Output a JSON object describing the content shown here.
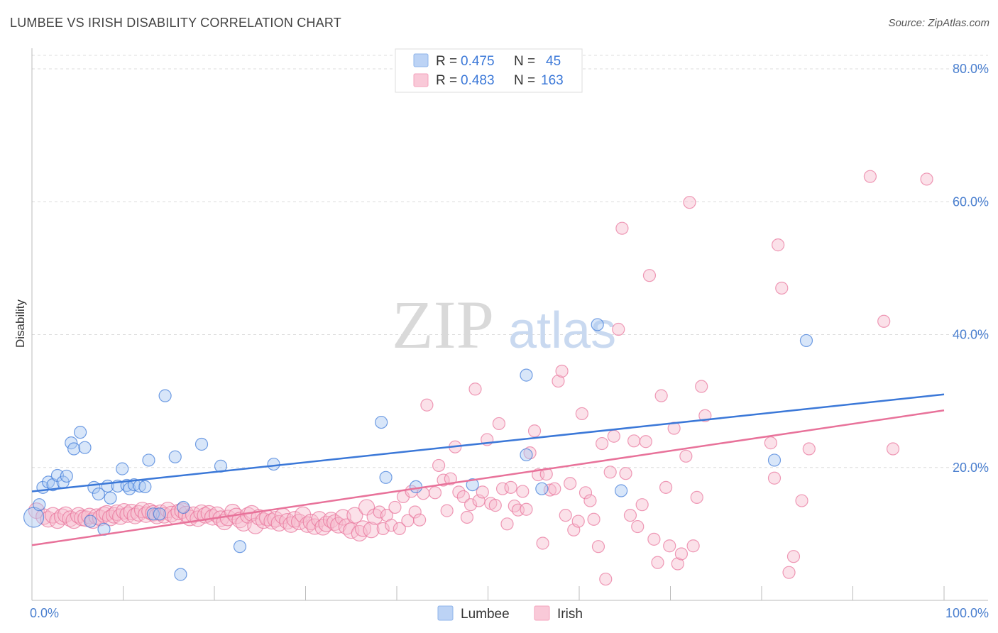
{
  "title": "LUMBEE VS IRISH DISABILITY CORRELATION CHART",
  "source": "Source: ZipAtlas.com",
  "watermark": {
    "zip": "ZIP",
    "atlas": "atlas"
  },
  "legend_top": [
    {
      "r_label": "R =",
      "r": "0.475",
      "n_label": "N =",
      "n": "45",
      "color": "#8fb4ea"
    },
    {
      "r_label": "R =",
      "r": "0.483",
      "n_label": "N =",
      "n": "163",
      "color": "#f4a3bd"
    }
  ],
  "legend_bottom": [
    {
      "name": "Lumbee",
      "color": "#8fb4ea"
    },
    {
      "name": "Irish",
      "color": "#f4a3bd"
    }
  ],
  "chart_data": {
    "type": "scatter",
    "xlabel": "",
    "ylabel": "Disability",
    "xlim": [
      0,
      100
    ],
    "ylim": [
      0,
      80
    ],
    "x_tick_labels": [
      "0.0%",
      "100.0%"
    ],
    "y_ticks": [
      20,
      40,
      60,
      80
    ],
    "y_tick_labels": [
      "20.0%",
      "40.0%",
      "60.0%",
      "80.0%"
    ],
    "grid": true,
    "series": [
      {
        "name": "Lumbee",
        "color": "#3b78d8",
        "fill": "#a9c8f2",
        "trend": [
          [
            0,
            16.4
          ],
          [
            100,
            31.0
          ]
        ],
        "points": [
          [
            0.2,
            12.5
          ],
          [
            0.8,
            14.4
          ],
          [
            1.2,
            17.0
          ],
          [
            1.8,
            17.8
          ],
          [
            2.3,
            17.4
          ],
          [
            2.8,
            18.8
          ],
          [
            3.4,
            17.8
          ],
          [
            3.8,
            18.7
          ],
          [
            4.3,
            23.7
          ],
          [
            4.6,
            22.8
          ],
          [
            5.3,
            25.3
          ],
          [
            5.8,
            23.0
          ],
          [
            6.4,
            11.9
          ],
          [
            6.8,
            17.0
          ],
          [
            7.3,
            16.0
          ],
          [
            7.9,
            10.7
          ],
          [
            8.3,
            17.2
          ],
          [
            8.6,
            15.4
          ],
          [
            9.4,
            17.2
          ],
          [
            9.9,
            19.8
          ],
          [
            10.4,
            17.3
          ],
          [
            10.7,
            16.8
          ],
          [
            11.2,
            17.4
          ],
          [
            11.8,
            17.2
          ],
          [
            12.4,
            17.1
          ],
          [
            12.8,
            21.1
          ],
          [
            13.3,
            13.0
          ],
          [
            14.0,
            13.0
          ],
          [
            14.6,
            30.8
          ],
          [
            15.7,
            21.6
          ],
          [
            16.3,
            3.9
          ],
          [
            16.6,
            14.0
          ],
          [
            18.6,
            23.5
          ],
          [
            20.7,
            20.2
          ],
          [
            22.8,
            8.1
          ],
          [
            26.5,
            20.5
          ],
          [
            38.3,
            26.8
          ],
          [
            38.8,
            18.5
          ],
          [
            42.1,
            17.1
          ],
          [
            48.3,
            17.4
          ],
          [
            54.2,
            33.9
          ],
          [
            54.2,
            21.9
          ],
          [
            55.9,
            16.8
          ],
          [
            62.0,
            41.5
          ],
          [
            64.6,
            16.5
          ],
          [
            81.4,
            21.1
          ],
          [
            84.9,
            39.1
          ]
        ]
      },
      {
        "name": "Irish",
        "color": "#e8729a",
        "fill": "#f6bccf",
        "trend": [
          [
            0,
            8.3
          ],
          [
            100,
            28.6
          ]
        ],
        "points": [
          [
            0.5,
            13.5
          ],
          [
            1.3,
            12.6
          ],
          [
            1.8,
            12.2
          ],
          [
            2.3,
            12.8
          ],
          [
            2.8,
            12.0
          ],
          [
            3.3,
            12.6
          ],
          [
            3.7,
            12.9
          ],
          [
            4.2,
            12.3
          ],
          [
            4.6,
            12.0
          ],
          [
            5.1,
            12.8
          ],
          [
            5.5,
            12.4
          ],
          [
            5.9,
            12.3
          ],
          [
            6.3,
            12.7
          ],
          [
            6.7,
            12.0
          ],
          [
            7.1,
            12.6
          ],
          [
            7.5,
            12.4
          ],
          [
            7.9,
            12.9
          ],
          [
            8.2,
            13.1
          ],
          [
            8.6,
            12.4
          ],
          [
            9.0,
            12.8
          ],
          [
            9.3,
            13.2
          ],
          [
            9.7,
            12.6
          ],
          [
            10.1,
            13.4
          ],
          [
            10.5,
            12.9
          ],
          [
            10.9,
            13.3
          ],
          [
            11.3,
            12.7
          ],
          [
            11.7,
            13.1
          ],
          [
            12.1,
            13.6
          ],
          [
            12.5,
            12.9
          ],
          [
            12.9,
            13.4
          ],
          [
            13.3,
            13.1
          ],
          [
            13.7,
            12.7
          ],
          [
            14.1,
            13.2
          ],
          [
            14.5,
            12.8
          ],
          [
            14.9,
            13.6
          ],
          [
            15.3,
            13.0
          ],
          [
            15.7,
            12.6
          ],
          [
            16.1,
            13.3
          ],
          [
            16.5,
            13.5
          ],
          [
            16.9,
            13.0
          ],
          [
            17.3,
            12.4
          ],
          [
            17.7,
            12.9
          ],
          [
            18.2,
            12.3
          ],
          [
            18.6,
            13.2
          ],
          [
            19.0,
            12.8
          ],
          [
            19.4,
            13.1
          ],
          [
            19.8,
            12.5
          ],
          [
            20.3,
            12.9
          ],
          [
            20.7,
            12.3
          ],
          [
            21.1,
            11.8
          ],
          [
            21.5,
            12.4
          ],
          [
            22.0,
            13.3
          ],
          [
            22.4,
            12.7
          ],
          [
            22.8,
            12.1
          ],
          [
            23.2,
            11.6
          ],
          [
            23.7,
            12.8
          ],
          [
            24.1,
            13.1
          ],
          [
            24.5,
            11.2
          ],
          [
            24.9,
            12.5
          ],
          [
            25.4,
            12.0
          ],
          [
            25.8,
            12.4
          ],
          [
            26.3,
            11.9
          ],
          [
            26.7,
            12.2
          ],
          [
            27.1,
            11.6
          ],
          [
            27.5,
            12.7
          ],
          [
            28.0,
            11.9
          ],
          [
            28.4,
            11.4
          ],
          [
            28.8,
            12.2
          ],
          [
            29.3,
            11.8
          ],
          [
            29.7,
            12.9
          ],
          [
            30.2,
            11.4
          ],
          [
            30.6,
            11.8
          ],
          [
            31.0,
            11.1
          ],
          [
            31.5,
            12.2
          ],
          [
            31.9,
            11.0
          ],
          [
            32.3,
            11.5
          ],
          [
            32.8,
            12.1
          ],
          [
            33.2,
            11.7
          ],
          [
            33.6,
            11.3
          ],
          [
            34.1,
            12.5
          ],
          [
            34.5,
            11.1
          ],
          [
            35.0,
            10.5
          ],
          [
            35.4,
            12.8
          ],
          [
            35.9,
            10.1
          ],
          [
            36.3,
            10.8
          ],
          [
            36.7,
            14.0
          ],
          [
            37.2,
            10.6
          ],
          [
            37.6,
            12.6
          ],
          [
            38.1,
            13.3
          ],
          [
            38.5,
            10.8
          ],
          [
            38.9,
            12.8
          ],
          [
            39.4,
            11.3
          ],
          [
            39.8,
            14.0
          ],
          [
            40.3,
            10.8
          ],
          [
            40.7,
            15.6
          ],
          [
            41.2,
            12.0
          ],
          [
            41.6,
            16.4
          ],
          [
            42.0,
            13.3
          ],
          [
            42.5,
            12.1
          ],
          [
            42.9,
            16.1
          ],
          [
            43.3,
            29.4
          ],
          [
            44.2,
            16.2
          ],
          [
            44.6,
            20.3
          ],
          [
            45.1,
            18.1
          ],
          [
            45.5,
            13.5
          ],
          [
            45.9,
            18.3
          ],
          [
            46.4,
            23.1
          ],
          [
            46.8,
            16.3
          ],
          [
            47.3,
            15.6
          ],
          [
            47.7,
            12.5
          ],
          [
            48.1,
            14.4
          ],
          [
            48.6,
            31.8
          ],
          [
            49.0,
            15.0
          ],
          [
            49.4,
            16.3
          ],
          [
            49.9,
            24.2
          ],
          [
            50.3,
            14.6
          ],
          [
            50.8,
            14.3
          ],
          [
            51.2,
            26.6
          ],
          [
            51.6,
            16.8
          ],
          [
            52.1,
            11.5
          ],
          [
            52.5,
            17.0
          ],
          [
            52.9,
            14.2
          ],
          [
            53.3,
            13.6
          ],
          [
            53.8,
            16.4
          ],
          [
            54.2,
            13.7
          ],
          [
            54.6,
            22.2
          ],
          [
            55.1,
            25.5
          ],
          [
            55.5,
            18.9
          ],
          [
            56.0,
            8.6
          ],
          [
            56.4,
            19.0
          ],
          [
            56.8,
            16.6
          ],
          [
            57.3,
            16.8
          ],
          [
            57.7,
            33.0
          ],
          [
            58.1,
            34.5
          ],
          [
            58.5,
            12.8
          ],
          [
            59.0,
            17.6
          ],
          [
            59.4,
            10.6
          ],
          [
            59.9,
            11.9
          ],
          [
            60.3,
            28.1
          ],
          [
            60.7,
            16.2
          ],
          [
            61.2,
            15.0
          ],
          [
            61.6,
            12.2
          ],
          [
            62.1,
            8.1
          ],
          [
            62.5,
            23.6
          ],
          [
            62.9,
            3.2
          ],
          [
            63.4,
            19.3
          ],
          [
            63.8,
            24.7
          ],
          [
            64.3,
            40.8
          ],
          [
            64.7,
            56.0
          ],
          [
            65.1,
            19.1
          ],
          [
            65.6,
            12.8
          ],
          [
            66.0,
            24.0
          ],
          [
            66.4,
            11.1
          ],
          [
            66.9,
            14.4
          ],
          [
            67.3,
            23.9
          ],
          [
            67.7,
            48.9
          ],
          [
            68.2,
            9.2
          ],
          [
            68.6,
            5.7
          ],
          [
            69.0,
            30.8
          ],
          [
            69.5,
            17.0
          ],
          [
            69.9,
            8.2
          ],
          [
            70.4,
            25.9
          ],
          [
            70.8,
            5.5
          ],
          [
            71.2,
            7.0
          ],
          [
            71.7,
            21.7
          ],
          [
            72.1,
            59.9
          ],
          [
            72.5,
            8.2
          ],
          [
            72.9,
            15.5
          ],
          [
            73.4,
            32.2
          ],
          [
            73.8,
            27.8
          ],
          [
            81.0,
            23.7
          ],
          [
            81.4,
            18.4
          ],
          [
            81.8,
            53.5
          ],
          [
            82.2,
            47.0
          ],
          [
            83.0,
            4.2
          ],
          [
            83.5,
            6.6
          ],
          [
            84.4,
            15.0
          ],
          [
            85.2,
            22.8
          ],
          [
            91.9,
            63.8
          ],
          [
            93.4,
            42.0
          ],
          [
            94.4,
            22.8
          ],
          [
            98.1,
            63.4
          ]
        ]
      }
    ]
  }
}
